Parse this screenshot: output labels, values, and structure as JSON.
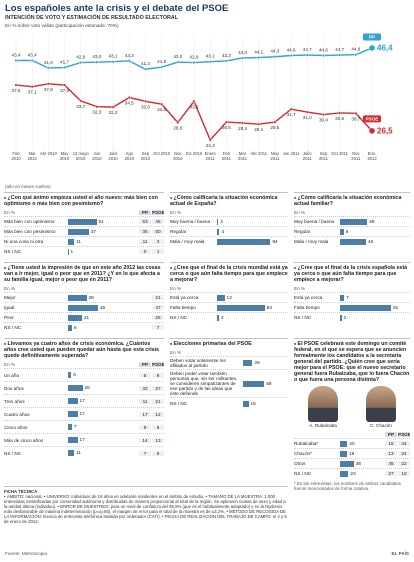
{
  "header": {
    "title": "Los españoles ante la crisis y el debate del PSOE",
    "subtitle": "INTENCIÓN DE VOTO Y ESTIMACIÓN DE RESULTADO ELECTORAL",
    "note": "En % sobre voto válido (participación estimada: 70%)"
  },
  "chart_data": {
    "type": "line",
    "axis_note": "(año en meses sueltos)",
    "categories": [
      "Feb 2010",
      "Mar 2010",
      "Abr 2010",
      "May 2010",
      "13 mayo 2010",
      "Jun 2010",
      "Julio 2010",
      "Ago 2010",
      "Sep 2010",
      "Oct 2010",
      "Nov 2010",
      "Dic 2010",
      "Enero 2011",
      "Feb 2011",
      "Mar 2011",
      "Abr 2011",
      "May 2011",
      "Jun 2011",
      "Julio 2011",
      "Sep 2011",
      "Oct 2011",
      "Nov 2011",
      "Ene. 2012"
    ],
    "series": [
      {
        "name": "PP",
        "color": "#2ea3d5",
        "values": [
          43.4,
          43.4,
          41.6,
          41.7,
          42.9,
          43.0,
          43.1,
          43.3,
          41.3,
          41.8,
          43.0,
          42.9,
          43.1,
          43.3,
          44.0,
          44.1,
          44.3,
          44.6,
          44.7,
          44.6,
          44.7,
          44.8,
          46.4
        ],
        "value_labels": [
          "43,4",
          "43,4",
          "41,6",
          "41,7",
          "42,9",
          "43,0",
          "43,1",
          "43,3",
          "41,3",
          "41,8",
          "43,0",
          "42,9",
          "43,1",
          "43,3",
          "44,0",
          "44,1",
          "44,3",
          "44,6",
          "44,7",
          "44,6",
          "44,7",
          "44,8",
          "46,4"
        ]
      },
      {
        "name": "PSOE",
        "color": "#d7282f",
        "values": [
          37.5,
          37.1,
          37.8,
          37.5,
          33.7,
          32.3,
          32.2,
          34.5,
          33.6,
          32.9,
          28.5,
          33.6,
          24.3,
          28.6,
          28.4,
          28.1,
          28.6,
          31.7,
          31.0,
          30.4,
          30.8,
          30.7,
          26.5
        ],
        "value_labels": [
          "37,5",
          "37,1",
          "37,8",
          "37,5",
          "33,7",
          "32,3",
          "32,2",
          "34,5",
          "33,6",
          "32,9",
          "28,5",
          "33,6",
          "24,3",
          "28,6",
          "28,4",
          "28,1",
          "28,6",
          "31,7",
          "31,0",
          "30,4",
          "30,8",
          "30,7",
          "26,5"
        ]
      }
    ]
  },
  "panels": [
    {
      "question": "¿Con qué ánimo empieza usted el año nuevo: más bien con optimismo o más bien con pesimismo?",
      "unit": "En %",
      "columns": [
        "PP",
        "PSOE"
      ],
      "rows": [
        {
          "label": "Más bien con optimismo",
          "value": 51,
          "cols": [
            53,
            46
          ]
        },
        {
          "label": "Más bien con pesimismo",
          "value": 37,
          "cols": [
            36,
            50
          ]
        },
        {
          "label": "Ni una cosa ni otra",
          "value": 11,
          "cols": [
            11,
            3
          ]
        },
        {
          "label": "NS / NC",
          "value": 1,
          "cols": [
            0,
            1
          ]
        }
      ]
    },
    {
      "question": "¿Cómo calificaría la situación económica actual de España?",
      "unit": "En %",
      "rows": [
        {
          "label": "Muy buena / buena",
          "value": 2
        },
        {
          "label": "Regular",
          "value": 4
        },
        {
          "label": "Mala / muy mala",
          "value": 94
        }
      ]
    },
    {
      "question": "¿Cómo calificaría la situación económica actual familiar?",
      "unit": "En %",
      "rows": [
        {
          "label": "Muy buena / buena",
          "value": 48
        },
        {
          "label": "Regular",
          "value": 6
        },
        {
          "label": "Mala / muy mala",
          "value": 46
        }
      ]
    },
    {
      "question": "¿Tiene usted la impresión de que en este año 2012 las cosas van a ir mejor, igual o peor que en 2011? ¿Y en lo que afecta a su familia igual, mejor o peor que en 2011?",
      "unit": "En %",
      "rows": [
        {
          "label": "Mejor",
          "value": 28,
          "cols": [
            21
          ]
        },
        {
          "label": "Igual",
          "value": 45,
          "cols": [
            47
          ]
        },
        {
          "label": "Peor",
          "value": 21,
          "cols": [
            25
          ]
        },
        {
          "label": "NS / NC",
          "value": 6,
          "cols": [
            7
          ]
        }
      ]
    },
    {
      "question": "¿Cree que el final de la crisis mundial está ya cerca o que aún falta tiempo para que empiece a mejorar?",
      "unit": "En %",
      "rows": [
        {
          "label": "Está ya cerca",
          "value": 13
        },
        {
          "label": "Falta tiempo",
          "value": 84
        },
        {
          "label": "NS / NC",
          "value": 3
        }
      ]
    },
    {
      "question": "¿Cree que el final de la crisis española está ya cerca o que aún falta tiempo para que empiece a mejorar?",
      "unit": "En %",
      "rows": [
        {
          "label": "Está ya cerca",
          "value": 7
        },
        {
          "label": "Falta tiempo",
          "value": 91
        },
        {
          "label": "NS / NC",
          "value": 2
        }
      ]
    },
    {
      "question": "Llevamos ya cuatro años de crisis económica. ¿Cuántos años cree usted que pueden quedar aún hasta que esta crisis quede definitivamente superada?",
      "unit": "En %",
      "columns": [
        "PP",
        "PSOE"
      ],
      "rows": [
        {
          "label": "Un año",
          "value": 6,
          "cols": [
            5,
            9
          ]
        },
        {
          "label": "Dos años",
          "value": 26,
          "cols": [
            32,
            27
          ]
        },
        {
          "label": "Tres años",
          "value": 17,
          "cols": [
            11,
            21
          ]
        },
        {
          "label": "Cuatro años",
          "value": 17,
          "cols": [
            17,
            12
          ]
        },
        {
          "label": "Cinco años",
          "value": 7,
          "cols": [
            9,
            6
          ]
        },
        {
          "label": "Más de cinco años",
          "value": 17,
          "cols": [
            14,
            13
          ]
        },
        {
          "label": "NS / NC",
          "value": 11,
          "cols": [
            7,
            9
          ]
        }
      ]
    },
    {
      "question": "Elecciones primarias del PSOE",
      "unit": "En %",
      "rows": [
        {
          "label": "Deben votar solamente los afiliados al partido",
          "value": 26
        },
        {
          "label": "Deben poder votar también personas que, sin ser militantes, se consideren simpatizantes de ese partido y de las ideas que éste defiende",
          "value": 59
        },
        {
          "label": "NS / NC",
          "value": 15
        }
      ]
    },
    {
      "question": "El PSOE celebrará este domingo un comité federal, en el que se espera que se anuncien formalmente los candidatos a la secretaría general del partido. ¿Quién cree que sería mejor para el PSOE: que el nuevo secretario general fuera Rubalcaba, que lo fuera Chacón o que fuera una persona distinta?",
      "photos": [
        "A. Rubalcaba",
        "C. Chacón"
      ],
      "columns": [
        "PP",
        "PSOE"
      ],
      "rows": [
        {
          "label": "Rubalcaba*",
          "value": 20,
          "cols": [
            15,
            44
          ]
        },
        {
          "label": "Chacón*",
          "value": 19,
          "cols": [
            13,
            24
          ]
        },
        {
          "label": "Otros",
          "value": 38,
          "cols": [
            45,
            22
          ]
        },
        {
          "label": "NS / NC",
          "value": 23,
          "cols": [
            27,
            10
          ]
        }
      ],
      "note": "* En las entrevistas, los nombres de ambos candidatos fueron mencionados de forma rotativa."
    }
  ],
  "ficha": {
    "title": "FICHA TÉCNICA",
    "text": "• ÁMBITO: nacional. • UNIVERSO: individuos de 18 años en adelante residentes en el ámbito de estudio. • TAMAÑO DE LA MUESTRA: 1.000 entrevistas estratificadas por comunidad autónoma y distribuidas de manera proporcional al total de la región. Se aplicaron cuotas de sexo y edad a la unidad última (individuo). • ERROR DE MUESTREO: para un nivel de confianza del 95,5% (que es el habitualmente adoptado) y en la hipótesis más desfavorable de máxima indeterminación (p=q=50), el margen de error para el total de la muestra es de ±3,2%. • MÉTODO DE RECOGIDA DE LA INFORMACIÓN: técnica de entrevista telefónica asistida por ordenador (CATI). • FECHA DE REALIZACIÓN DEL TRABAJO DE CAMPO: el 4 y 5 de enero de 2012."
  },
  "footer": {
    "source": "Fuente: Metroscopia",
    "brand": "EL PAÍS"
  }
}
